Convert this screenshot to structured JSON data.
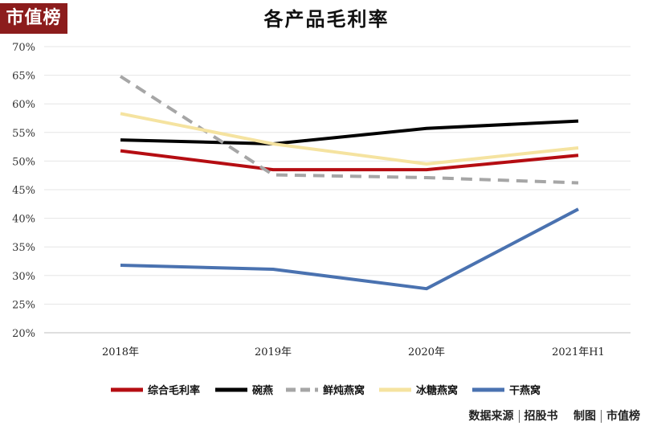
{
  "logo_text": "市值榜",
  "footer": {
    "source_label": "数据来源",
    "source_name": "招股书",
    "made_by_label": "制图",
    "made_by_name": "市值榜"
  },
  "chart_data": {
    "type": "line",
    "title": "各产品毛利率",
    "categories": [
      "2018年",
      "2019年",
      "2020年",
      "2021年H1"
    ],
    "y_ticks": [
      "20%",
      "25%",
      "30%",
      "35%",
      "40%",
      "45%",
      "50%",
      "55%",
      "60%",
      "65%",
      "70%"
    ],
    "ylim": [
      20,
      70
    ],
    "grid": "horizontal",
    "legend_position": "bottom",
    "series": [
      {
        "name": "综合毛利率",
        "values": [
          51.8,
          48.5,
          48.5,
          51.0
        ],
        "color": "#b50d12",
        "dash": false
      },
      {
        "name": "碗燕",
        "values": [
          53.7,
          53.0,
          55.7,
          57.0
        ],
        "color": "#000000",
        "dash": false
      },
      {
        "name": "鲜炖燕窝",
        "values": [
          64.8,
          47.6,
          47.1,
          46.2
        ],
        "color": "#a6a6a6",
        "dash": true
      },
      {
        "name": "冰糖燕窝",
        "values": [
          58.3,
          53.0,
          49.5,
          52.3
        ],
        "color": "#f5e3a0",
        "dash": false
      },
      {
        "name": "干燕窝",
        "values": [
          31.8,
          31.1,
          27.7,
          41.6
        ],
        "color": "#4a72b0",
        "dash": false
      }
    ]
  }
}
